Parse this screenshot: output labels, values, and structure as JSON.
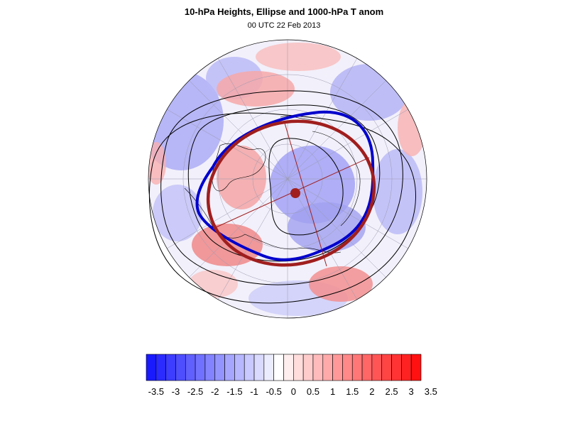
{
  "title": "10-hPa Heights, Ellipse and 1000-hPa T anom",
  "subtitle": "00 UTC 22 Feb 2013",
  "colorbar": {
    "colors": [
      "#1a1aff",
      "#2b2bff",
      "#3d3dff",
      "#4e4eff",
      "#6060ff",
      "#7171ff",
      "#8383ff",
      "#9494ff",
      "#a6a6ff",
      "#b7b7ff",
      "#c9c9ff",
      "#dadaff",
      "#ececff",
      "#ffffff",
      "#ffeeee",
      "#ffdddd",
      "#ffcccc",
      "#ffbbbb",
      "#ffaaaa",
      "#ff9999",
      "#ff8888",
      "#ff7777",
      "#ff6666",
      "#ff5555",
      "#ff4444",
      "#ff3333",
      "#ff2222",
      "#ff1111"
    ],
    "ticks": [
      "-3.5",
      "-3",
      "-2.5",
      "-2",
      "-1.5",
      "-1",
      "-0.5",
      "0",
      "0.5",
      "1",
      "1.5",
      "2",
      "2.5",
      "3",
      "3.5"
    ]
  },
  "map": {
    "projection": "north-polar-stereographic",
    "fill_field": "1000-hPa temperature anomaly",
    "contour_color": "#000000",
    "observed_vortex_color": "#0000cc",
    "ellipse_color": "#a01e1e"
  }
}
